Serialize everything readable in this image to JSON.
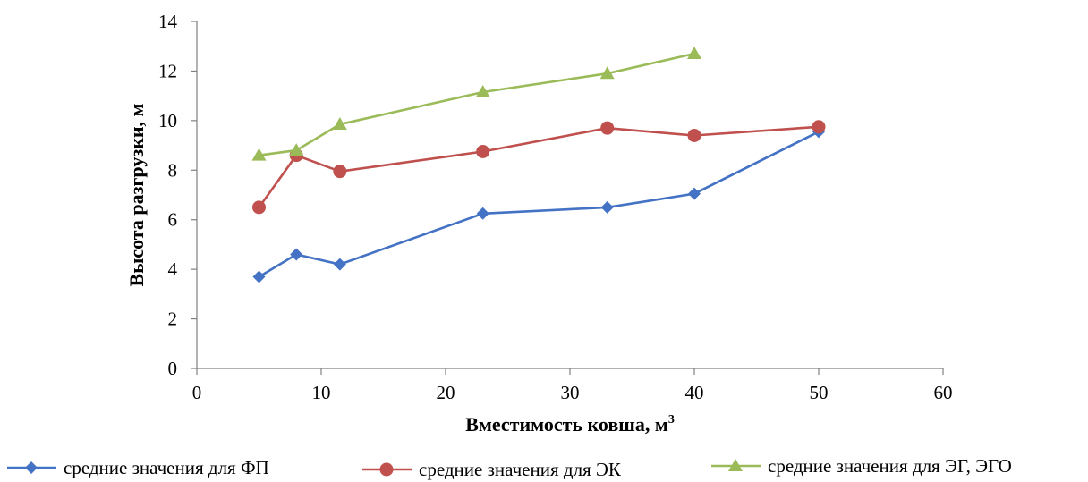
{
  "chart_data": {
    "type": "line",
    "title": "",
    "xlabel": "Вместимость ковша, м",
    "xlabel_sup": "3",
    "ylabel": "Высота разгрузки, м",
    "xlim": [
      0,
      60
    ],
    "ylim": [
      0,
      14
    ],
    "xticks": [
      "0",
      "10",
      "20",
      "30",
      "40",
      "50",
      "60"
    ],
    "yticks": [
      "0",
      "2",
      "4",
      "6",
      "8",
      "10",
      "12",
      "14"
    ],
    "grid": false,
    "legend_position": "bottom",
    "series": [
      {
        "name": "средние значения для ФП",
        "color": "#4472C4",
        "marker": "diamond",
        "x": [
          5,
          8,
          11.5,
          23,
          33,
          40,
          50
        ],
        "y": [
          3.7,
          4.6,
          4.2,
          6.25,
          6.5,
          7.05,
          9.55
        ]
      },
      {
        "name": "средние значения для ЭК",
        "color": "#C0504D",
        "marker": "circle",
        "x": [
          5,
          8,
          11.5,
          23,
          33,
          40,
          50
        ],
        "y": [
          6.5,
          8.6,
          7.95,
          8.75,
          9.7,
          9.4,
          9.75
        ]
      },
      {
        "name": "средние значения для ЭГ, ЭГО",
        "color": "#9BBB59",
        "marker": "triangle",
        "x": [
          5,
          8,
          11.5,
          23,
          33,
          40
        ],
        "y": [
          8.6,
          8.8,
          9.85,
          11.15,
          11.9,
          12.7
        ]
      }
    ]
  }
}
